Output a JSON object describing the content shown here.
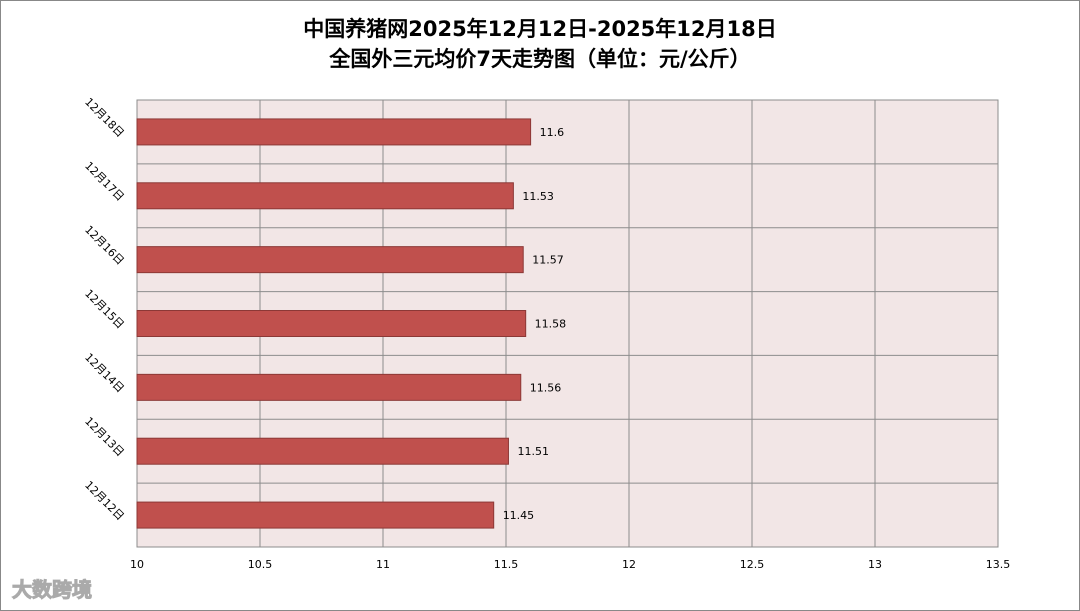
{
  "chart_data": {
    "type": "barh",
    "title": "中国养猪网2025年12月12日-2025年12月18日",
    "subtitle": "全国外三元均价7天走势图（单位：元/公斤）",
    "categories": [
      "12月18日",
      "12月17日",
      "12月16日",
      "12月15日",
      "12月14日",
      "12月13日",
      "12月12日"
    ],
    "values": [
      11.6,
      11.53,
      11.57,
      11.58,
      11.56,
      11.51,
      11.45
    ],
    "color": "#c0504d",
    "xlim": [
      10,
      13.5
    ],
    "xticks": [
      10,
      10.5,
      11,
      11.5,
      12,
      12.5,
      13,
      13.5
    ],
    "grid": true
  },
  "watermark": "大数跨境"
}
